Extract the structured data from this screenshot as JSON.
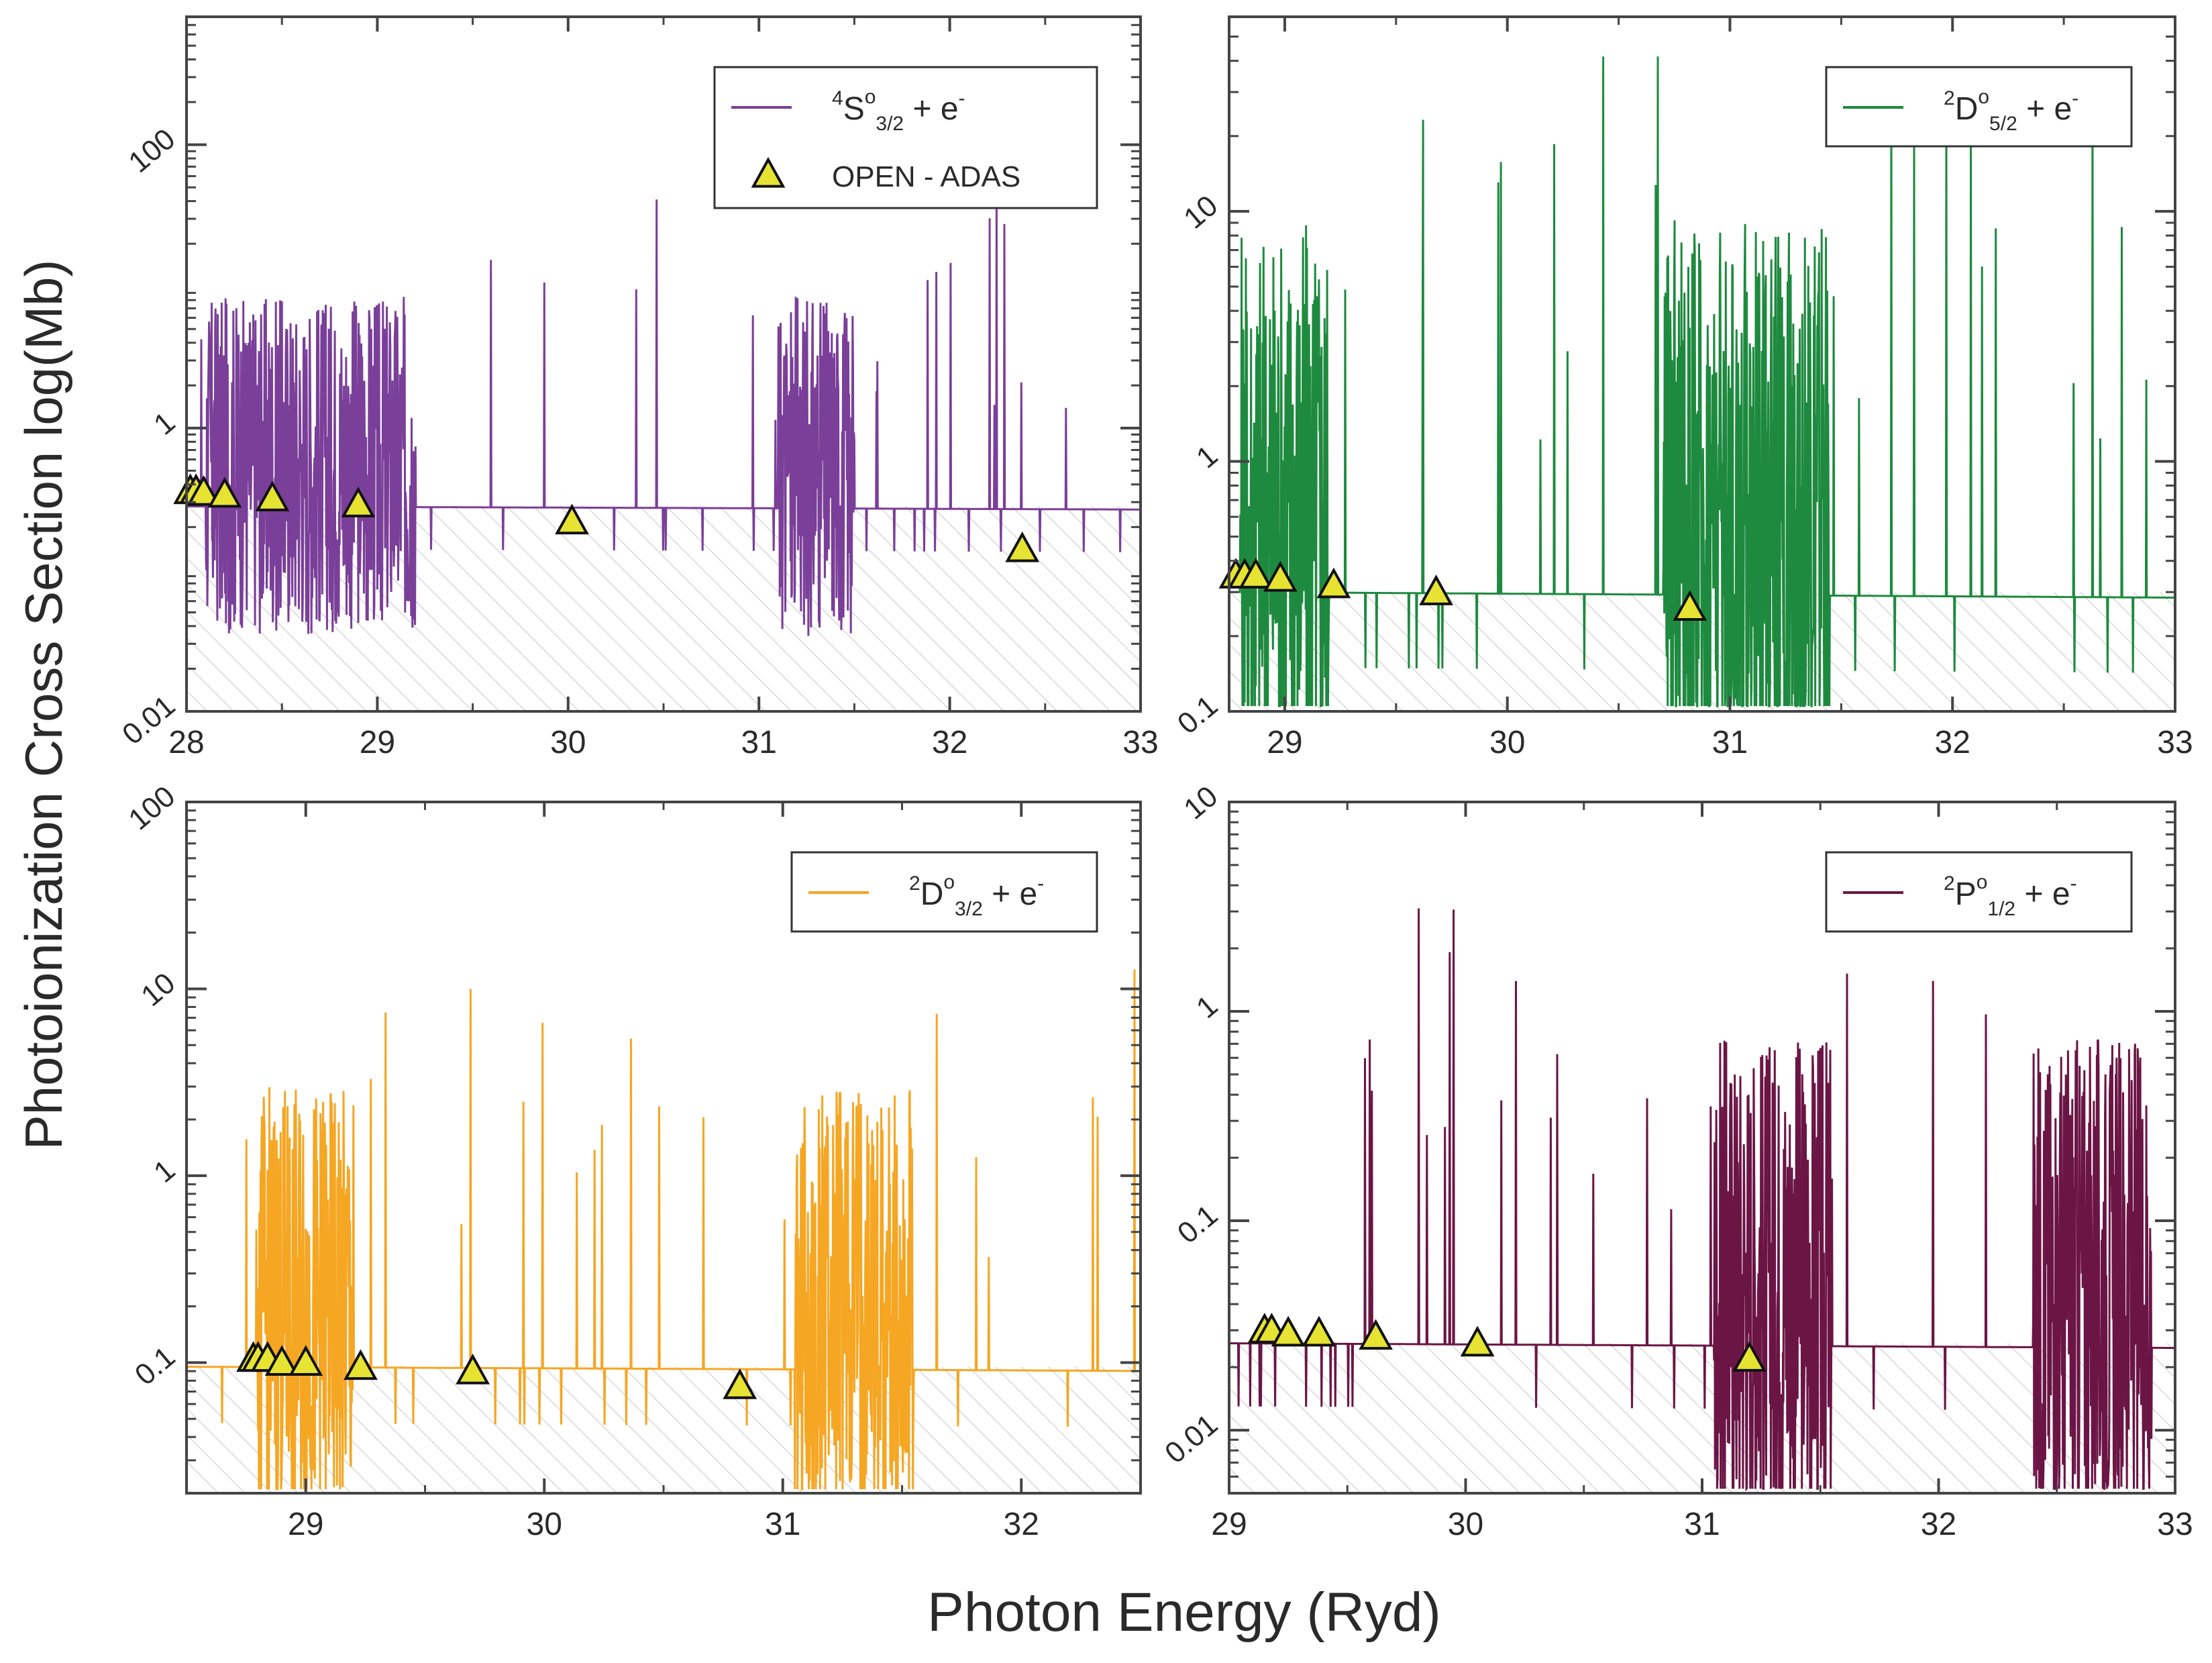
{
  "figure": {
    "ylabel": "Photoionization Cross Section log(Mb)",
    "xlabel": "Photon Energy (Ryd)"
  },
  "chart_data": [
    {
      "type": "line",
      "panel": "top-left",
      "color": "#7a3f99",
      "series": [
        {
          "name": "4So3/2 + e-",
          "label": {
            "sup1": "4",
            "base": "S",
            "sup2": "o",
            "sub": "3/2",
            "rest": " + e",
            "sup3": "-"
          }
        }
      ],
      "markers_name": "OPEN - ADAS",
      "markers": [
        [
          28.02,
          0.36
        ],
        [
          28.05,
          0.36
        ],
        [
          28.09,
          0.35
        ],
        [
          28.2,
          0.34
        ],
        [
          28.45,
          0.32
        ],
        [
          28.9,
          0.29
        ],
        [
          30.02,
          0.22
        ],
        [
          32.38,
          0.14
        ]
      ],
      "baseline": 0.28,
      "resonance_bands": [
        [
          28.1,
          29.2
        ],
        [
          31.1,
          31.5
        ]
      ],
      "xlim": [
        28,
        33
      ],
      "ylim": [
        0.01,
        800
      ],
      "xticks": [
        "28",
        "29",
        "30",
        "31",
        "32",
        "33"
      ],
      "yticks": [
        {
          "v": 0.01,
          "t": "0.01"
        },
        {
          "v": 1,
          "t": "1"
        },
        {
          "v": 100,
          "t": "100"
        }
      ],
      "log_y": true,
      "grid": false,
      "legend_position": "top-right"
    },
    {
      "type": "line",
      "panel": "top-right",
      "color": "#1e8a3f",
      "series": [
        {
          "name": "2Do5/2 + e-",
          "label": {
            "sup1": "2",
            "base": "D",
            "sup2": "o",
            "sub": "5/2",
            "rest": " + e",
            "sup3": "-"
          }
        }
      ],
      "markers": [
        [
          28.78,
          0.35
        ],
        [
          28.82,
          0.35
        ],
        [
          28.87,
          0.35
        ],
        [
          28.98,
          0.34
        ],
        [
          29.22,
          0.32
        ],
        [
          29.68,
          0.3
        ],
        [
          30.82,
          0.26
        ]
      ],
      "baseline": 0.3,
      "resonance_bands": [
        [
          28.8,
          29.2
        ],
        [
          30.7,
          31.45
        ]
      ],
      "xlim": [
        28.75,
        33
      ],
      "ylim": [
        0.1,
        60
      ],
      "xticks": [
        "29",
        "30",
        "31",
        "32",
        "33"
      ],
      "yticks": [
        {
          "v": 0.1,
          "t": "0.1"
        },
        {
          "v": 1,
          "t": "1"
        },
        {
          "v": 10,
          "t": "10"
        }
      ],
      "log_y": true,
      "grid": false,
      "legend_position": "top-right"
    },
    {
      "type": "line",
      "panel": "bottom-left",
      "color": "#f5a623",
      "series": [
        {
          "name": "2Do3/2 + e-",
          "label": {
            "sup1": "2",
            "base": "D",
            "sup2": "o",
            "sub": "3/2",
            "rest": " + e",
            "sup3": "-"
          }
        }
      ],
      "markers": [
        [
          28.78,
          0.105
        ],
        [
          28.8,
          0.105
        ],
        [
          28.84,
          0.105
        ],
        [
          28.9,
          0.1
        ],
        [
          29.0,
          0.1
        ],
        [
          29.23,
          0.095
        ],
        [
          29.7,
          0.09
        ],
        [
          30.82,
          0.075
        ]
      ],
      "baseline": 0.095,
      "resonance_bands": [
        [
          28.8,
          29.2
        ],
        [
          31.05,
          31.55
        ]
      ],
      "xlim": [
        28.5,
        32.5
      ],
      "ylim": [
        0.02,
        100
      ],
      "xticks": [
        "29",
        "30",
        "31",
        "32"
      ],
      "yticks": [
        {
          "v": 0.1,
          "t": "0.1"
        },
        {
          "v": 1,
          "t": "1"
        },
        {
          "v": 10,
          "t": "10"
        },
        {
          "v": 100,
          "t": "100"
        }
      ],
      "log_y": true,
      "grid": false,
      "legend_position": "top-right"
    },
    {
      "type": "line",
      "panel": "bottom-right",
      "color": "#6b1545",
      "series": [
        {
          "name": "2Po1/2 + e-",
          "label": {
            "sup1": "2",
            "base": "P",
            "sup2": "o",
            "sub": "1/2",
            "rest": " + e",
            "sup3": "-"
          }
        }
      ],
      "markers": [
        [
          29.15,
          0.03
        ],
        [
          29.18,
          0.03
        ],
        [
          29.25,
          0.029
        ],
        [
          29.38,
          0.029
        ],
        [
          29.62,
          0.028
        ],
        [
          30.05,
          0.026
        ],
        [
          31.2,
          0.022
        ]
      ],
      "baseline": 0.026,
      "resonance_bands": [
        [
          31.05,
          31.55
        ],
        [
          32.4,
          32.9
        ]
      ],
      "xlim": [
        29,
        33
      ],
      "ylim": [
        0.005,
        10
      ],
      "xticks": [
        "29",
        "30",
        "31",
        "32",
        "33"
      ],
      "yticks": [
        {
          "v": 0.01,
          "t": "0.01"
        },
        {
          "v": 0.1,
          "t": "0.1"
        },
        {
          "v": 1,
          "t": "1"
        },
        {
          "v": 10,
          "t": "10"
        }
      ],
      "log_y": true,
      "grid": false,
      "legend_position": "top-right"
    }
  ]
}
